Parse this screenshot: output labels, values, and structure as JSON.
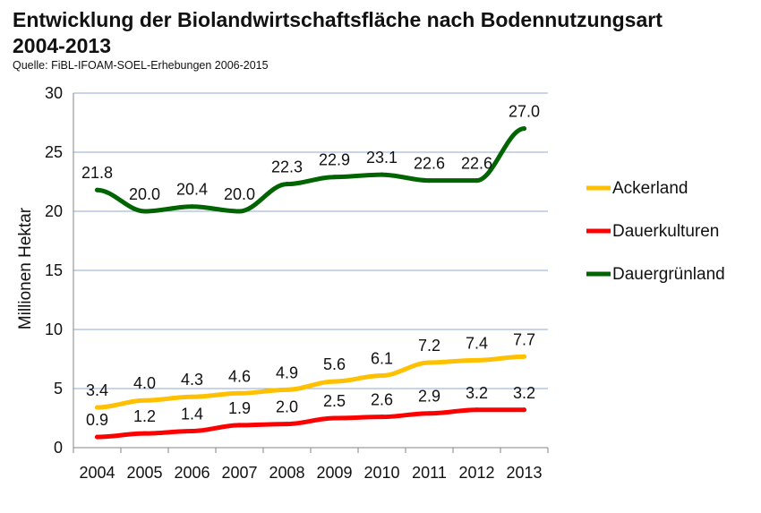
{
  "title_line1": "Entwicklung der Biolandwirtschaftsfläche nach Bodennutzungsart",
  "title_line2": "2004-2013",
  "source": "Quelle: FiBL-IFOAM-SOEL-Erhebungen 2006-2015",
  "chart_data": {
    "type": "line",
    "title": "Entwicklung der Biolandwirtschaftsfläche nach Bodennutzungsart 2004-2013",
    "subtitle": "Quelle: FiBL-IFOAM-SOEL-Erhebungen 2006-2015",
    "ylabel": "Millionen Hektar",
    "xlabel": "",
    "ylim": [
      0,
      30
    ],
    "yticks": [
      0,
      5,
      10,
      15,
      20,
      25,
      30
    ],
    "grid": true,
    "legend_position": "right",
    "categories": [
      "2004",
      "2005",
      "2006",
      "2007",
      "2008",
      "2009",
      "2010",
      "2011",
      "2012",
      "2013"
    ],
    "series": [
      {
        "name": "Ackerland",
        "color": "#FFC000",
        "values": [
          3.4,
          4.0,
          4.3,
          4.6,
          4.9,
          5.6,
          6.1,
          7.2,
          7.4,
          7.7
        ]
      },
      {
        "name": "Dauerkulturen",
        "color": "#FF0000",
        "values": [
          0.9,
          1.2,
          1.4,
          1.9,
          2.0,
          2.5,
          2.6,
          2.9,
          3.2,
          3.2
        ]
      },
      {
        "name": "Dauergrünland",
        "color": "#006400",
        "values": [
          21.8,
          20.0,
          20.4,
          20.0,
          22.3,
          22.9,
          23.1,
          22.6,
          22.6,
          27.0
        ]
      }
    ]
  }
}
